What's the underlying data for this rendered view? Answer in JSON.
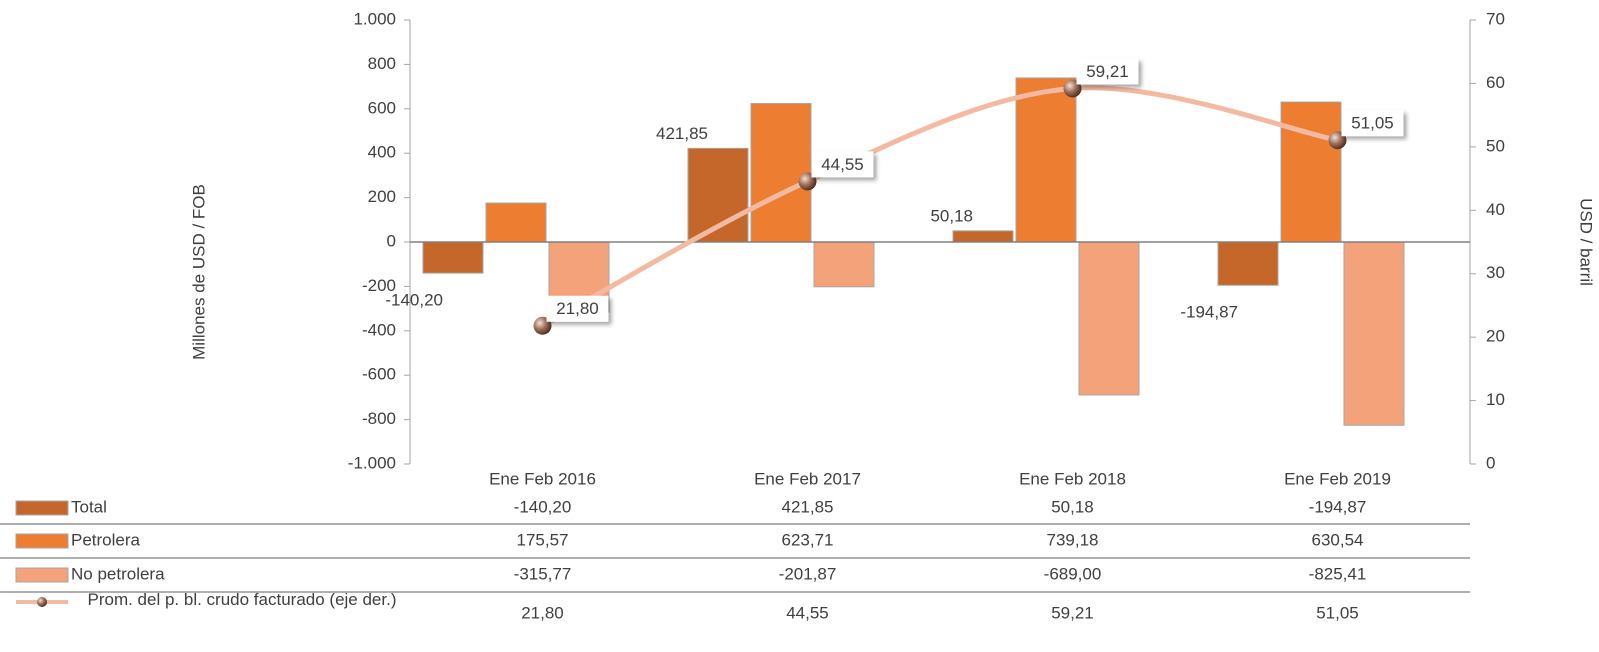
{
  "chart_data": {
    "type": "bar",
    "categories": [
      "Ene Feb  2016",
      "Ene Feb  2017",
      "Ene Feb  2018",
      "Ene Feb  2019"
    ],
    "series": [
      {
        "name": "Total",
        "color": "#c5672a",
        "values": [
          -140.2,
          421.85,
          50.18,
          -194.87
        ],
        "value_labels": [
          "-140,20",
          "421,85",
          "50,18",
          "-194,87"
        ]
      },
      {
        "name": "Petrolera",
        "color": "#ed7d31",
        "values": [
          175.57,
          623.71,
          739.18,
          630.54
        ],
        "value_labels": [
          "175,57",
          "623,71",
          "739,18",
          "630,54"
        ]
      },
      {
        "name": "No petrolera",
        "color": "#f4a27a",
        "values": [
          -315.77,
          -201.87,
          -689.0,
          -825.41
        ],
        "value_labels": [
          "-315,77",
          "-201,87",
          "-689,00",
          "-825,41"
        ]
      },
      {
        "name": "Prom. del p. bl. crudo facturado (eje der.)",
        "type": "line",
        "axis": "y2",
        "color": "#f4b9a3",
        "values": [
          21.8,
          44.55,
          59.21,
          51.05
        ],
        "value_labels": [
          "21,80",
          "44,55",
          "59,21",
          "51,05"
        ]
      }
    ],
    "ylabel": "Millones  de  USD / FOB",
    "y2label": "USD / barril",
    "ylim": [
      -1000,
      1000
    ],
    "yticks": [
      {
        "value": -1000,
        "label": "-1.000"
      },
      -800,
      -600,
      -400,
      -200,
      0,
      200,
      400,
      600,
      800,
      {
        "value": 1000,
        "label": "1.000"
      }
    ],
    "y2lim": [
      0,
      70
    ],
    "y2ticks": [
      0,
      10,
      20,
      30,
      40,
      50,
      60,
      70
    ]
  }
}
